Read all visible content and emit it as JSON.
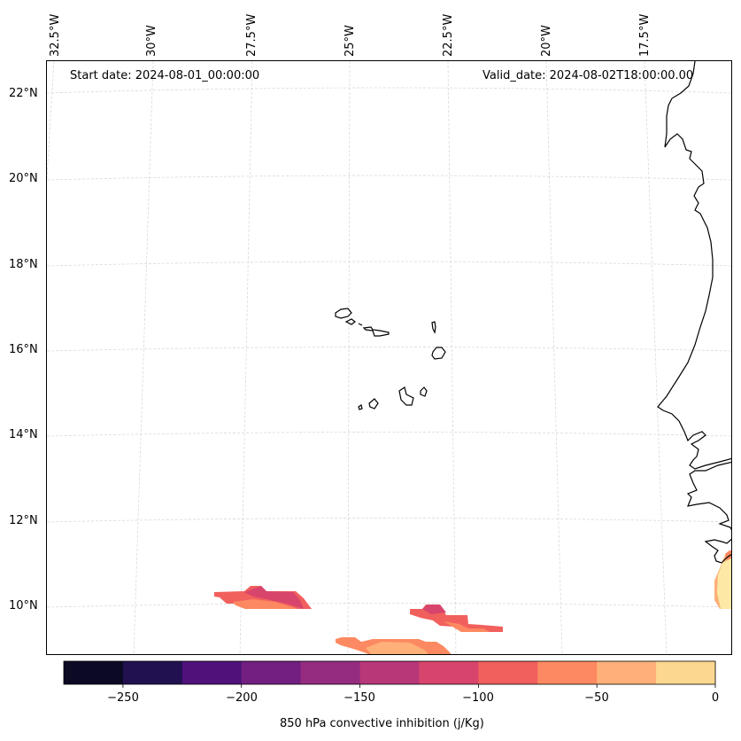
{
  "map": {
    "start_date": "Start date: 2024-08-01_00:00:00",
    "valid_date": "Valid_date: 2024-08-02T18:00:00.00",
    "lon_labels": [
      "32.5°W",
      "30°W",
      "27.5°W",
      "25°W",
      "22.5°W",
      "20°W",
      "17.5°W"
    ],
    "lat_labels": [
      "22°N",
      "20°N",
      "18°N",
      "16°N",
      "14°N",
      "12°N",
      "10°N"
    ],
    "gridline_color": "#d9d9d9",
    "coastline_color": "#000000"
  },
  "colorbar": {
    "label": "850 hPa convective inhibition (j/Kg)",
    "ticks": [
      "−250",
      "−200",
      "−150",
      "−100",
      "−50",
      "0"
    ],
    "bins": [
      -275,
      -250,
      -225,
      -200,
      -175,
      -150,
      -125,
      -100,
      -75,
      -50,
      -25,
      0
    ],
    "colors": [
      "#0b0924",
      "#221150",
      "#4f127b",
      "#721f81",
      "#952c80",
      "#b73779",
      "#d8456c",
      "#f1605d",
      "#fc8961",
      "#feb078",
      "#fcd78f",
      "#fde9a5"
    ]
  }
}
